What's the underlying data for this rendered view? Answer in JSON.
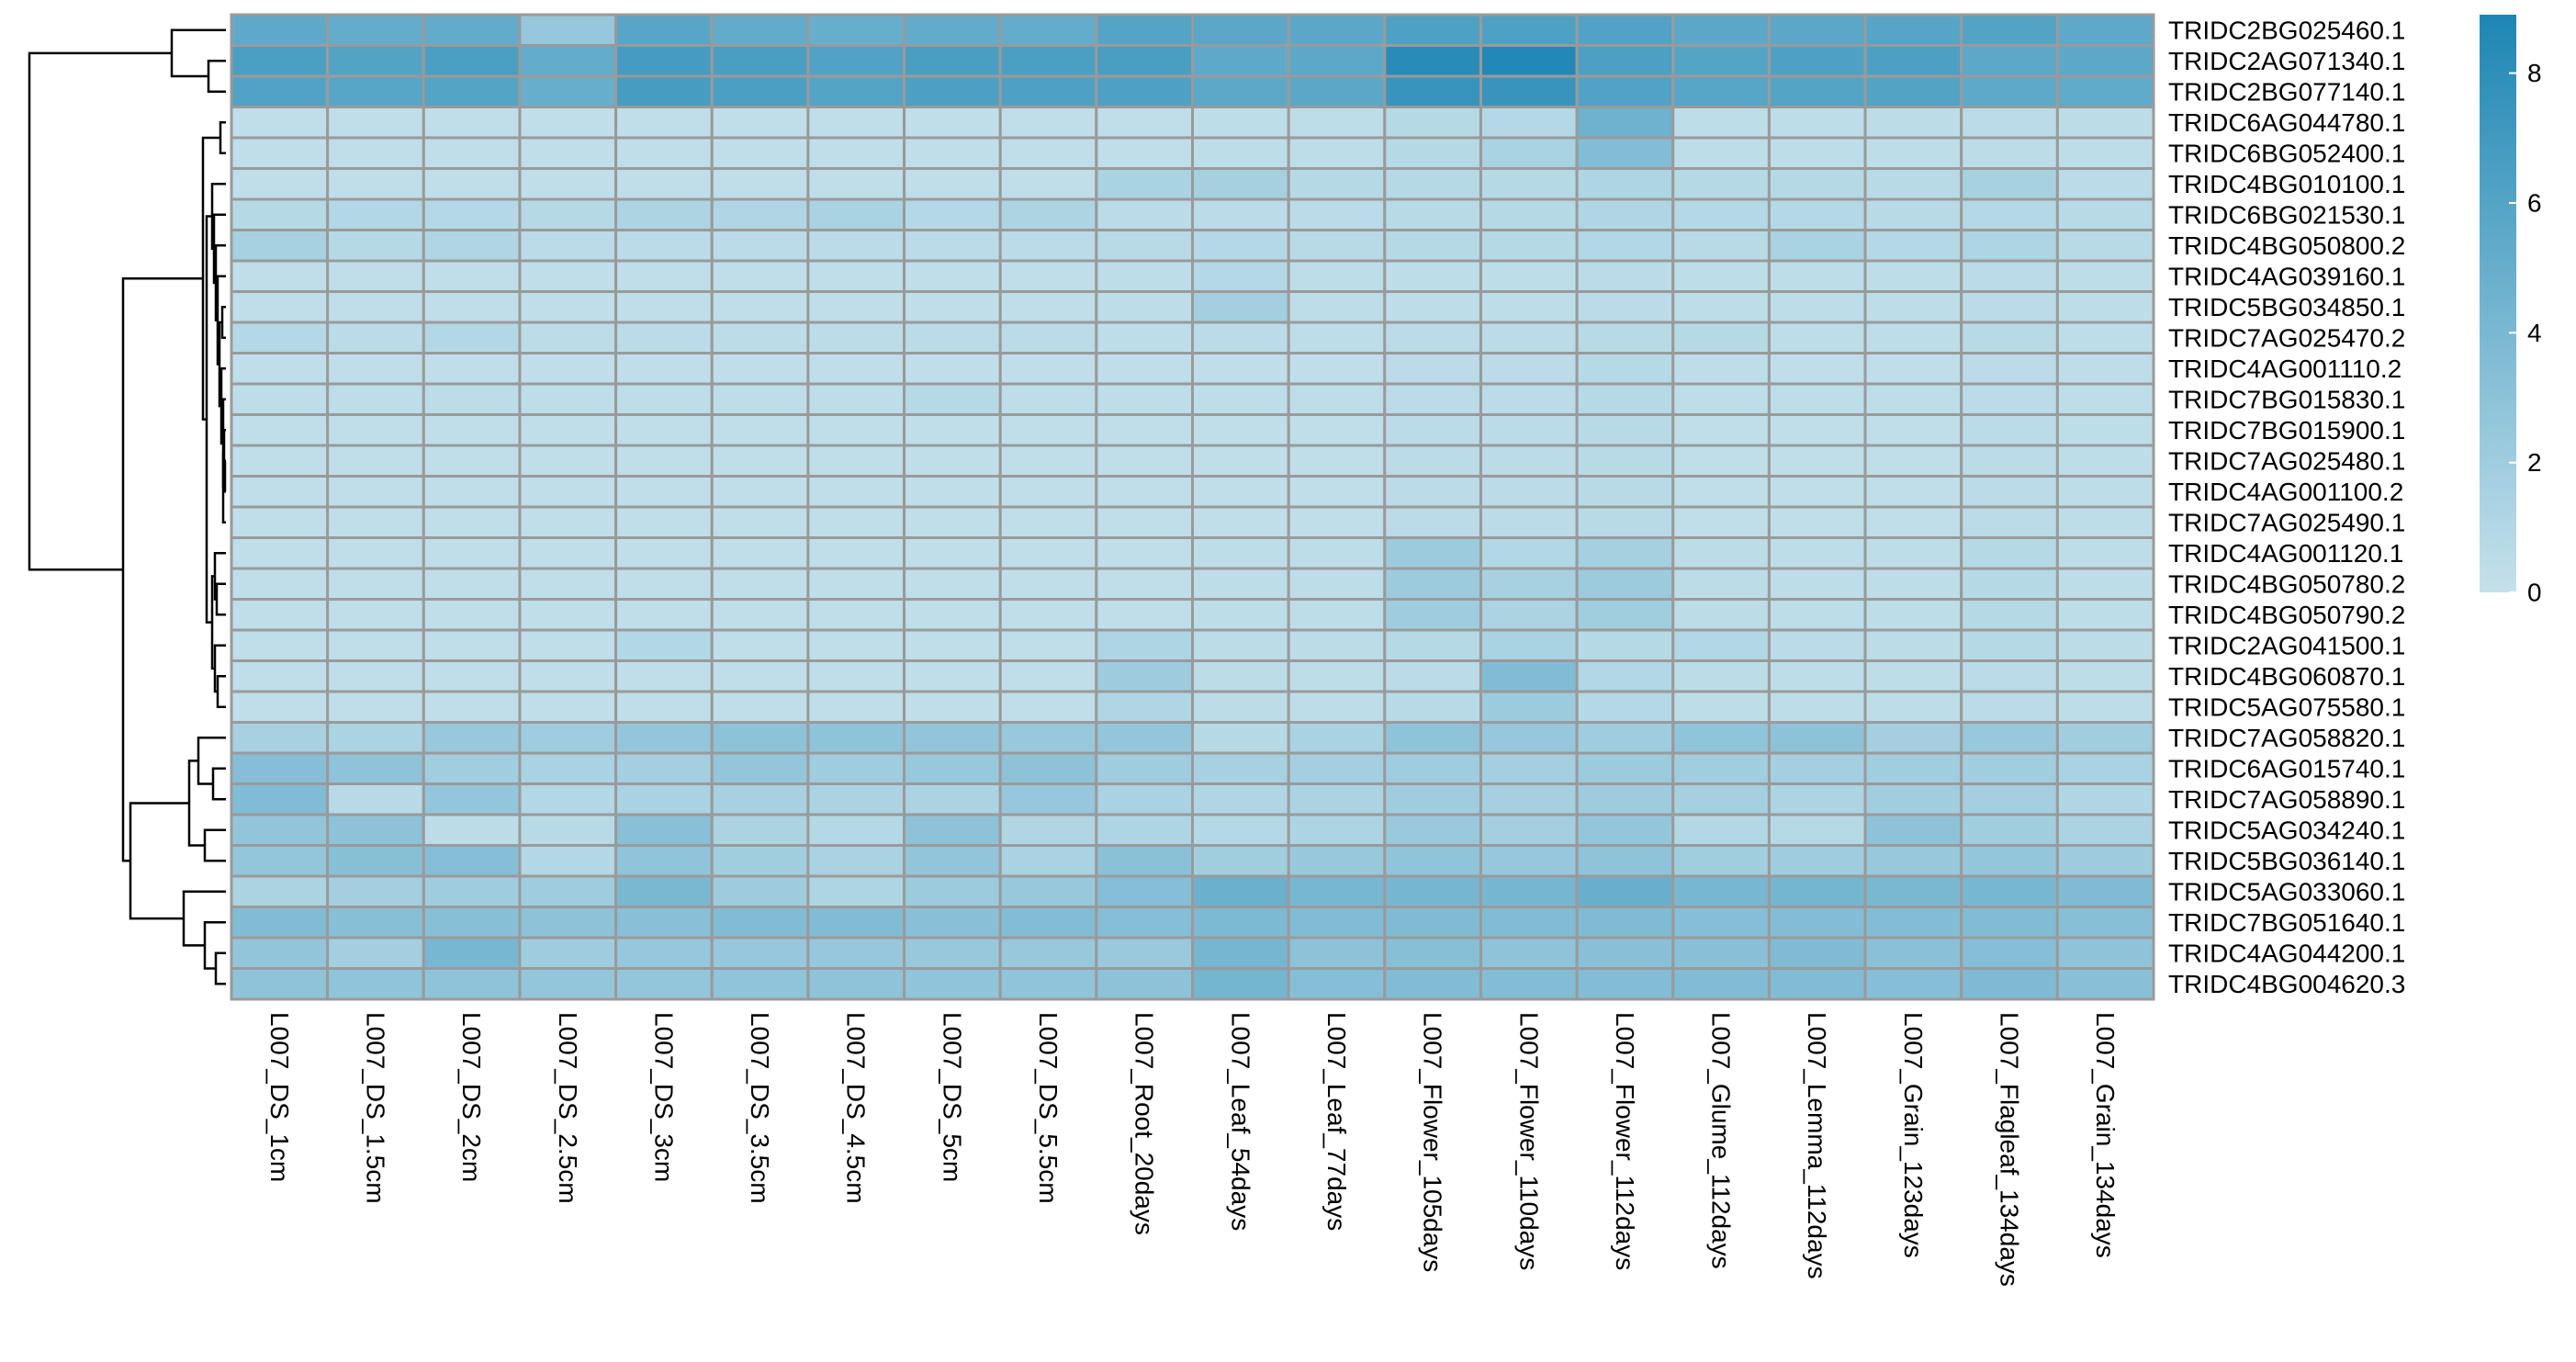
{
  "chart_data": {
    "type": "heatmap",
    "columns": [
      "L007_DS_1cm",
      "L007_DS_1.5cm",
      "L007_DS_2cm",
      "L007_DS_2.5cm",
      "L007_DS_3cm",
      "L007_DS_3.5cm",
      "L007_DS_4.5cm",
      "L007_DS_5cm",
      "L007_DS_5.5cm",
      "L007_Root_20days",
      "L007_Leaf_54days",
      "L007_Leaf_77days",
      "L007_Flower_105days",
      "L007_Flower_110days",
      "L007_Flower_112days",
      "L007_Glume_112days",
      "L007_Lemma_112days",
      "L007_Grain_123days",
      "L007_Flagleaf_134days",
      "L007_Grain_134days"
    ],
    "rows": [
      "TRIDC2BG025460.1",
      "TRIDC2AG071340.1",
      "TRIDC2BG077140.1",
      "TRIDC6AG044780.1",
      "TRIDC6BG052400.1",
      "TRIDC4BG010100.1",
      "TRIDC6BG021530.1",
      "TRIDC4BG050800.2",
      "TRIDC4AG039160.1",
      "TRIDC5BG034850.1",
      "TRIDC7AG025470.2",
      "TRIDC4AG001110.2",
      "TRIDC7BG015830.1",
      "TRIDC7BG015900.1",
      "TRIDC7AG025480.1",
      "TRIDC4AG001100.2",
      "TRIDC7AG025490.1",
      "TRIDC4AG001120.1",
      "TRIDC4BG050780.2",
      "TRIDC4BG050790.2",
      "TRIDC2AG041500.1",
      "TRIDC4BG060870.1",
      "TRIDC5AG075580.1",
      "TRIDC7AG058820.1",
      "TRIDC6AG015740.1",
      "TRIDC7AG058890.1",
      "TRIDC5AG034240.1",
      "TRIDC5BG036140.1",
      "TRIDC5AG033060.1",
      "TRIDC7BG051640.1",
      "TRIDC4AG044200.1",
      "TRIDC4BG004620.3"
    ],
    "values": [
      [
        5.5,
        5.2,
        5.3,
        2.5,
        5.8,
        5.3,
        5.0,
        5.3,
        5.2,
        6.0,
        5.7,
        5.7,
        6.3,
        6.3,
        6.2,
        5.7,
        5.7,
        5.9,
        6.1,
        5.5
      ],
      [
        6.5,
        6.1,
        6.5,
        5.2,
        6.8,
        6.6,
        6.2,
        6.6,
        6.5,
        6.6,
        5.5,
        5.6,
        8.3,
        8.7,
        6.4,
        6.0,
        6.3,
        6.4,
        5.6,
        5.6
      ],
      [
        6.2,
        5.8,
        6.0,
        5.0,
        6.7,
        6.5,
        6.0,
        6.4,
        6.3,
        6.3,
        5.6,
        5.7,
        7.5,
        7.5,
        6.2,
        5.8,
        6.0,
        6.1,
        5.5,
        5.4
      ],
      [
        0.3,
        0.3,
        0.3,
        0.3,
        0.3,
        0.3,
        0.3,
        0.3,
        0.3,
        0.3,
        0.4,
        0.4,
        0.8,
        0.9,
        4.6,
        0.4,
        0.4,
        0.5,
        0.6,
        0.5
      ],
      [
        0.3,
        0.3,
        0.3,
        0.3,
        0.3,
        0.3,
        0.3,
        0.3,
        0.3,
        0.3,
        0.4,
        0.4,
        0.8,
        1.5,
        3.5,
        0.4,
        0.4,
        0.4,
        0.5,
        0.4
      ],
      [
        0.3,
        0.3,
        0.3,
        0.3,
        0.3,
        0.3,
        0.3,
        0.3,
        0.3,
        1.5,
        1.7,
        0.8,
        0.8,
        0.8,
        1.2,
        0.8,
        0.8,
        0.7,
        1.6,
        0.6
      ],
      [
        0.8,
        1.0,
        0.9,
        0.8,
        1.3,
        1.1,
        1.5,
        0.9,
        1.3,
        0.6,
        0.6,
        0.6,
        0.7,
        0.8,
        1.1,
        0.9,
        0.9,
        0.7,
        0.9,
        0.7
      ],
      [
        1.6,
        0.8,
        1.1,
        0.6,
        0.6,
        0.6,
        0.6,
        0.6,
        0.6,
        0.7,
        0.9,
        0.7,
        0.8,
        0.8,
        1.0,
        0.7,
        1.5,
        0.9,
        1.2,
        0.7
      ],
      [
        0.3,
        0.3,
        0.3,
        0.3,
        0.3,
        0.3,
        0.3,
        0.3,
        0.3,
        0.4,
        0.9,
        0.4,
        0.4,
        0.4,
        0.6,
        0.4,
        0.4,
        0.4,
        0.6,
        0.4
      ],
      [
        0.3,
        0.3,
        0.3,
        0.3,
        0.3,
        0.3,
        0.3,
        0.3,
        0.3,
        0.4,
        1.8,
        0.4,
        0.4,
        0.4,
        0.6,
        0.4,
        0.4,
        0.4,
        0.6,
        0.4
      ],
      [
        0.9,
        0.6,
        1.0,
        0.5,
        0.6,
        0.5,
        0.5,
        0.6,
        0.6,
        0.4,
        0.6,
        0.4,
        0.6,
        0.6,
        0.7,
        0.8,
        0.4,
        0.4,
        0.7,
        0.4
      ],
      [
        0.3,
        0.3,
        0.3,
        0.3,
        0.3,
        0.3,
        0.3,
        0.3,
        0.3,
        0.3,
        0.3,
        0.3,
        0.6,
        0.6,
        0.8,
        0.4,
        0.3,
        0.3,
        0.6,
        0.4
      ],
      [
        0.4,
        0.4,
        0.5,
        0.4,
        0.4,
        0.4,
        0.4,
        0.8,
        0.4,
        0.4,
        0.4,
        0.4,
        0.6,
        0.6,
        0.8,
        0.4,
        0.4,
        0.4,
        0.6,
        0.4
      ],
      [
        0.3,
        0.3,
        0.3,
        0.3,
        0.3,
        0.3,
        0.3,
        0.3,
        0.3,
        0.3,
        0.3,
        0.3,
        0.6,
        0.6,
        0.7,
        0.3,
        0.3,
        0.3,
        0.6,
        0.4
      ],
      [
        0.3,
        0.3,
        0.3,
        0.3,
        0.3,
        0.3,
        0.3,
        0.3,
        0.3,
        0.3,
        0.3,
        0.3,
        0.6,
        0.6,
        0.7,
        0.3,
        0.3,
        0.3,
        0.6,
        0.4
      ],
      [
        0.3,
        0.3,
        0.3,
        0.3,
        0.3,
        0.3,
        0.3,
        0.3,
        0.3,
        0.3,
        0.3,
        0.3,
        0.6,
        0.6,
        0.7,
        0.3,
        0.3,
        0.3,
        0.6,
        0.4
      ],
      [
        0.3,
        0.3,
        0.3,
        0.3,
        0.3,
        0.3,
        0.3,
        0.3,
        0.3,
        0.3,
        0.3,
        0.3,
        0.6,
        0.6,
        0.7,
        0.3,
        0.3,
        0.3,
        0.6,
        0.4
      ],
      [
        0.3,
        0.3,
        0.3,
        0.3,
        0.3,
        0.3,
        0.3,
        0.3,
        0.3,
        0.3,
        0.4,
        0.4,
        2.2,
        1.0,
        1.7,
        0.5,
        0.4,
        0.4,
        0.8,
        0.4
      ],
      [
        0.3,
        0.3,
        0.3,
        0.3,
        0.3,
        0.3,
        0.3,
        0.3,
        0.3,
        0.3,
        0.4,
        0.4,
        2.2,
        1.6,
        2.2,
        0.5,
        0.4,
        0.4,
        0.8,
        0.4
      ],
      [
        0.3,
        0.3,
        0.3,
        0.3,
        0.3,
        0.3,
        0.3,
        0.3,
        0.3,
        0.3,
        0.4,
        0.4,
        2.0,
        1.4,
        1.9,
        0.5,
        0.4,
        0.4,
        0.8,
        0.4
      ],
      [
        0.3,
        0.3,
        0.3,
        0.3,
        1.0,
        0.3,
        0.3,
        0.3,
        0.3,
        1.2,
        0.5,
        0.5,
        0.8,
        1.5,
        0.8,
        1.0,
        0.6,
        0.5,
        0.8,
        0.5
      ],
      [
        0.3,
        0.3,
        0.3,
        0.3,
        0.3,
        0.3,
        0.3,
        0.3,
        0.3,
        2.1,
        0.5,
        0.4,
        0.6,
        3.6,
        1.0,
        0.5,
        0.4,
        0.4,
        0.6,
        0.4
      ],
      [
        0.3,
        0.3,
        0.3,
        0.3,
        0.3,
        0.3,
        0.3,
        0.3,
        0.3,
        1.1,
        0.5,
        0.4,
        0.7,
        2.2,
        0.9,
        0.4,
        0.4,
        0.4,
        0.6,
        0.4
      ],
      [
        1.6,
        1.4,
        2.4,
        2.0,
        2.6,
        3.0,
        2.9,
        2.7,
        2.4,
        2.6,
        0.8,
        1.5,
        2.9,
        2.5,
        2.0,
        2.8,
        3.0,
        1.8,
        2.4,
        1.9
      ],
      [
        3.4,
        2.9,
        1.9,
        1.5,
        1.8,
        2.6,
        2.0,
        2.4,
        3.0,
        2.0,
        1.6,
        1.8,
        2.0,
        1.8,
        2.2,
        1.9,
        1.8,
        1.9,
        1.9,
        1.5
      ],
      [
        3.6,
        0.7,
        2.6,
        1.0,
        1.5,
        1.6,
        1.4,
        1.4,
        2.5,
        1.5,
        1.1,
        1.4,
        2.0,
        1.7,
        2.1,
        1.7,
        1.3,
        1.9,
        1.8,
        1.1
      ],
      [
        2.7,
        3.0,
        0.5,
        0.7,
        3.2,
        1.4,
        0.9,
        3.0,
        1.1,
        1.2,
        0.9,
        1.3,
        2.3,
        1.8,
        2.6,
        1.0,
        0.8,
        3.0,
        1.9,
        1.4
      ],
      [
        2.6,
        3.3,
        3.4,
        1.0,
        2.8,
        1.9,
        1.5,
        2.7,
        1.5,
        3.1,
        1.9,
        2.4,
        2.8,
        2.5,
        2.9,
        1.9,
        2.0,
        2.4,
        2.6,
        2.1
      ],
      [
        1.4,
        1.8,
        2.0,
        2.0,
        4.0,
        2.1,
        1.2,
        2.2,
        2.4,
        3.4,
        4.8,
        4.1,
        4.2,
        4.2,
        4.9,
        4.1,
        4.3,
        4.0,
        4.1,
        3.7
      ],
      [
        3.6,
        3.3,
        3.3,
        3.0,
        3.2,
        3.6,
        3.6,
        3.2,
        3.5,
        3.4,
        3.9,
        3.6,
        3.7,
        3.6,
        3.7,
        3.4,
        3.5,
        3.5,
        3.6,
        3.3
      ],
      [
        2.7,
        1.8,
        4.1,
        2.0,
        2.5,
        2.5,
        2.5,
        2.4,
        2.4,
        2.3,
        4.2,
        3.0,
        3.3,
        2.9,
        3.2,
        3.2,
        3.7,
        3.1,
        3.4,
        2.9
      ],
      [
        2.9,
        2.8,
        2.9,
        2.6,
        2.6,
        2.8,
        2.9,
        2.8,
        2.8,
        3.0,
        4.3,
        3.4,
        3.6,
        3.5,
        3.5,
        3.6,
        3.6,
        3.4,
        3.8,
        3.2
      ]
    ],
    "color_scale": {
      "min": 0,
      "max": 8.9,
      "low_color": "#c5e1eb",
      "high_color": "#1e86b4",
      "ticks": [
        "0",
        "2",
        "4",
        "6",
        "8"
      ]
    },
    "cell_border_color": "#9a9a9a",
    "row_dendrogram": true,
    "column_dendrogram": false
  }
}
